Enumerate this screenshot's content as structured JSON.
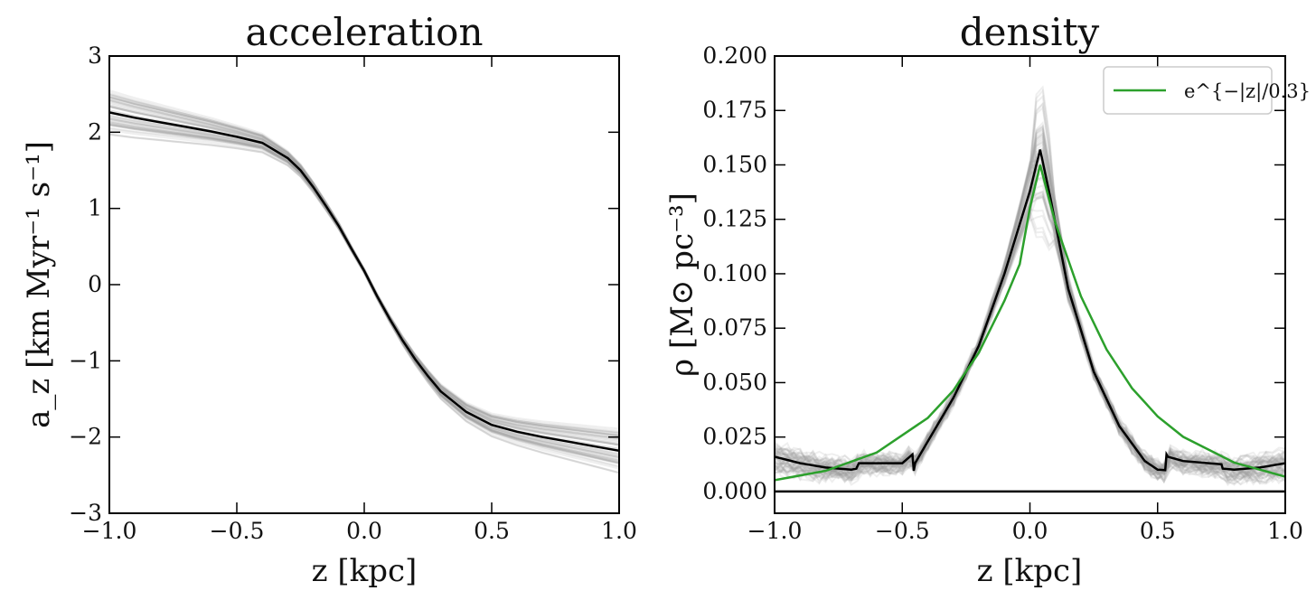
{
  "chart_data": [
    {
      "type": "line",
      "title": "acceleration",
      "xlabel": "z [kpc]",
      "ylabel": "a_z [km Myr⁻¹ s⁻¹]",
      "xlim": [
        -1.0,
        1.0
      ],
      "ylim": [
        -3,
        3
      ],
      "x_ticks": [
        -1.0,
        -0.5,
        0.0,
        0.5,
        1.0
      ],
      "x_tick_labels": [
        "−1.0",
        "−0.5",
        "0.0",
        "0.5",
        "1.0"
      ],
      "y_ticks": [
        -3,
        -2,
        -1,
        0,
        1,
        2,
        3
      ],
      "y_tick_labels": [
        "−3",
        "−2",
        "−1",
        "0",
        "1",
        "2",
        "3"
      ],
      "grid": false,
      "series": [
        {
          "color": "#000000",
          "x": [
            -1.0,
            -0.9,
            -0.8,
            -0.7,
            -0.6,
            -0.5,
            -0.4,
            -0.3,
            -0.25,
            -0.2,
            -0.15,
            -0.1,
            -0.05,
            0.0,
            0.05,
            0.1,
            0.15,
            0.2,
            0.25,
            0.3,
            0.4,
            0.5,
            0.6,
            0.7,
            0.8,
            0.9,
            1.0
          ],
          "y": [
            2.26,
            2.19,
            2.13,
            2.07,
            2.01,
            1.94,
            1.86,
            1.66,
            1.5,
            1.28,
            1.03,
            0.77,
            0.47,
            0.18,
            -0.15,
            -0.45,
            -0.73,
            -0.98,
            -1.2,
            -1.4,
            -1.67,
            -1.84,
            -1.93,
            -2.0,
            -2.06,
            -2.12,
            -2.18
          ]
        }
      ],
      "ensemble": {
        "color": "#9e9e9e",
        "count": 60,
        "spread_at_edges": 0.35
      }
    },
    {
      "type": "line",
      "title": "density",
      "xlabel": "z [kpc]",
      "ylabel": "ρ [M⊙ pc⁻³]",
      "xlim": [
        -1.0,
        1.0
      ],
      "ylim": [
        -0.01,
        0.2
      ],
      "x_ticks": [
        -1.0,
        -0.5,
        0.0,
        0.5,
        1.0
      ],
      "x_tick_labels": [
        "−1.0",
        "−0.5",
        "0.0",
        "0.5",
        "1.0"
      ],
      "y_ticks": [
        0.0,
        0.025,
        0.05,
        0.075,
        0.1,
        0.125,
        0.15,
        0.175,
        0.2
      ],
      "y_tick_labels": [
        "0.000",
        "0.025",
        "0.050",
        "0.075",
        "0.100",
        "0.125",
        "0.150",
        "0.175",
        "0.200"
      ],
      "grid": false,
      "legend_position": "top-right",
      "series": [
        {
          "color": "#000000",
          "x": [
            -1.0,
            -0.9,
            -0.8,
            -0.7,
            -0.68,
            -0.67,
            -0.6,
            -0.5,
            -0.46,
            -0.455,
            -0.45,
            -0.4,
            -0.3,
            -0.2,
            -0.1,
            0.0,
            0.04,
            0.08,
            0.15,
            0.25,
            0.35,
            0.45,
            0.5,
            0.53,
            0.535,
            0.54,
            0.6,
            0.7,
            0.75,
            0.755,
            0.8,
            0.9,
            1.0
          ],
          "y": [
            0.016,
            0.013,
            0.011,
            0.01,
            0.0105,
            0.013,
            0.013,
            0.013,
            0.017,
            0.0095,
            0.013,
            0.023,
            0.043,
            0.067,
            0.1,
            0.138,
            0.157,
            0.135,
            0.093,
            0.055,
            0.03,
            0.014,
            0.01,
            0.0098,
            0.017,
            0.016,
            0.014,
            0.013,
            0.0125,
            0.0105,
            0.01,
            0.011,
            0.013
          ]
        },
        {
          "name": "e^{−|z|/0.3}",
          "color": "#2ca02c",
          "x": [
            -1.0,
            -0.8,
            -0.6,
            -0.4,
            -0.3,
            -0.2,
            -0.1,
            -0.04,
            0.0,
            0.04,
            0.1,
            0.2,
            0.3,
            0.4,
            0.5,
            0.6,
            0.8,
            1.0
          ],
          "y": [
            0.0052,
            0.0095,
            0.0179,
            0.0338,
            0.0464,
            0.0638,
            0.0876,
            0.1044,
            0.1303,
            0.15,
            0.1231,
            0.0896,
            0.0652,
            0.0474,
            0.0345,
            0.0251,
            0.0133,
            0.0068
          ]
        },
        {
          "color": "#000000",
          "x": [
            -1.0,
            1.0
          ],
          "y": [
            0.0,
            0.0
          ]
        }
      ],
      "ensemble": {
        "color": "#9e9e9e",
        "count": 60,
        "peak_range": [
          0.12,
          0.2
        ]
      }
    }
  ]
}
